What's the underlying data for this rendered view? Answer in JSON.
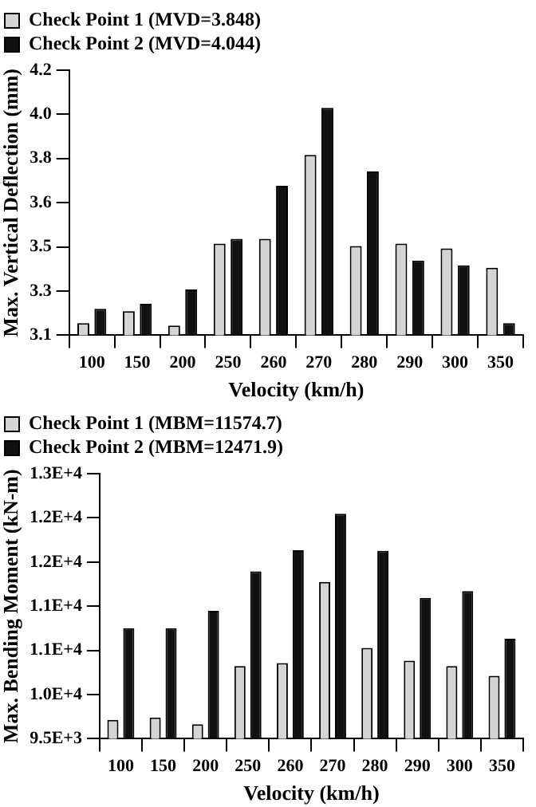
{
  "chart_data": [
    {
      "type": "bar",
      "xlabel": "Velocity (km/h)",
      "ylabel": "Max. Vertical Deflection (mm)",
      "categories": [
        "100",
        "150",
        "200",
        "250",
        "260",
        "270",
        "280",
        "290",
        "300",
        "350"
      ],
      "series": [
        {
          "name": "Check Point 1 (MVD=3.848)",
          "color": "#d4d4d4",
          "values": [
            3.15,
            3.2,
            3.14,
            3.48,
            3.5,
            3.848,
            3.47,
            3.48,
            3.46,
            3.38
          ]
        },
        {
          "name": "Check Point 2 (MVD=4.044)",
          "color": "#111111",
          "values": [
            3.21,
            3.23,
            3.29,
            3.5,
            3.72,
            4.044,
            3.78,
            3.41,
            3.39,
            3.15
          ]
        }
      ],
      "ylim": [
        3.1,
        4.2
      ],
      "yticks": [
        3.1,
        {
          "value": 3.2833,
          "label": "3.3"
        },
        {
          "value": 3.4667,
          "label": "3.5"
        },
        {
          "value": 3.65,
          "label": "3.6"
        },
        {
          "value": 3.8333,
          "label": "3.8"
        },
        {
          "value": 4.0167,
          "label": "4.0"
        },
        4.2
      ],
      "grid": false,
      "legend": "top left"
    },
    {
      "type": "bar",
      "xlabel": "Velocity (km/h)",
      "ylabel": "Max. Bending Moment (kN-m)",
      "categories": [
        "100",
        "150",
        "200",
        "250",
        "260",
        "270",
        "280",
        "290",
        "300",
        "350"
      ],
      "series": [
        {
          "name": "Check Point 1 (MBM=11574.7)",
          "color": "#d4d4d4",
          "values": [
            9750,
            9780,
            9690,
            10460,
            10500,
            11570,
            10700,
            10530,
            10460,
            10330
          ]
        },
        {
          "name": "Check Point 2 (MBM=12471.9)",
          "color": "#111111",
          "values": [
            10960,
            10960,
            11190,
            11710,
            11990,
            12470,
            11980,
            11360,
            11450,
            10820
          ]
        }
      ],
      "ylim": [
        9500,
        13000
      ],
      "yticks": [
        {
          "value": 9500,
          "label": "9.5E+3"
        },
        {
          "value": 10083,
          "label": "1.0E+4"
        },
        {
          "value": 10667,
          "label": "1.1E+4"
        },
        {
          "value": 11250,
          "label": "1.1E+4"
        },
        {
          "value": 11833,
          "label": "1.2E+4"
        },
        {
          "value": 12417,
          "label": "1.2E+4"
        },
        {
          "value": 13000,
          "label": "1.3E+4"
        }
      ],
      "grid": false,
      "legend": "top left"
    }
  ]
}
